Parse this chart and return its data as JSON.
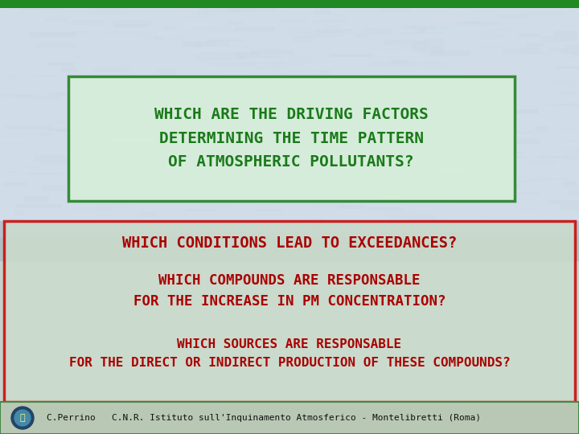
{
  "title_box_text": "WHICH ARE THE DRIVING FACTORS\nDETERMINING THE TIME PATTERN\nOF ATMOSPHERIC POLLUTANTS?",
  "title_text_color": "#1a7a1a",
  "bottom_box_border_color": "#cc0000",
  "q1": "WHICH CONDITIONS LEAD TO EXCEEDANCES?",
  "q2": "WHICH COMPOUNDS ARE RESPONSABLE\nFOR THE INCREASE IN PM CONCENTRATION?",
  "q3": "WHICH SOURCES ARE RESPONSABLE\nFOR THE DIRECT OR INDIRECT PRODUCTION OF THESE COMPOUNDS?",
  "red_text_color": "#aa0000",
  "footer_text": "C.Perrino   C.N.R. Istituto sull'Inquinamento Atmosferico - Montelibretti (Roma)",
  "border_green": "#1a7a1a",
  "border_red": "#cc0000",
  "bg_color": "#c8d8e0",
  "top_bg": "#dce8f0",
  "bottom_bg": "#c8dcd0",
  "title_box_bg": "#daf0da",
  "bottom_box_bg": "#c8dcd8",
  "footer_bg": "#c0cebc",
  "green_border_top": "#228822"
}
